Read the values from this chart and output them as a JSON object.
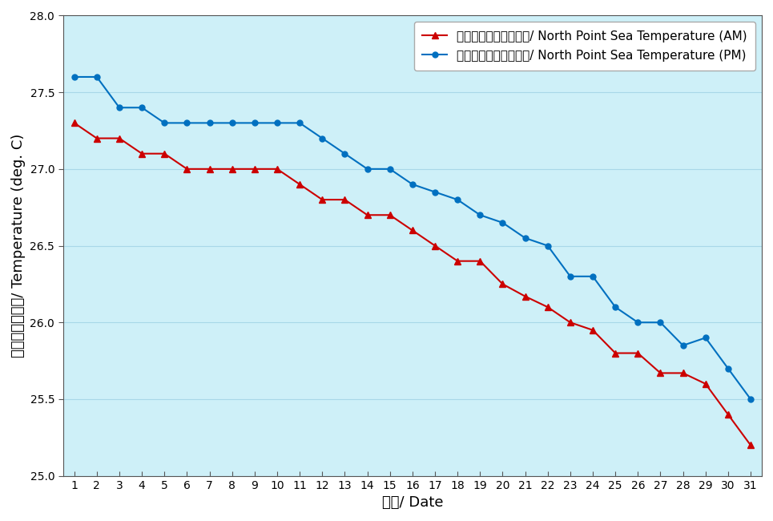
{
  "days": [
    1,
    2,
    3,
    4,
    5,
    6,
    7,
    8,
    9,
    10,
    11,
    12,
    13,
    14,
    15,
    16,
    17,
    18,
    19,
    20,
    21,
    22,
    23,
    24,
    25,
    26,
    27,
    28,
    29,
    30,
    31
  ],
  "am_values": [
    27.3,
    27.2,
    27.2,
    27.1,
    27.1,
    27.0,
    27.0,
    27.0,
    27.0,
    27.0,
    26.9,
    26.8,
    26.8,
    26.7,
    26.7,
    26.6,
    26.5,
    26.4,
    26.4,
    26.25,
    26.17,
    26.1,
    26.0,
    25.95,
    25.8,
    25.8,
    25.67,
    25.67,
    25.6,
    25.4,
    25.2
  ],
  "pm_values": [
    27.6,
    27.6,
    27.4,
    27.4,
    27.3,
    27.3,
    27.3,
    27.3,
    27.3,
    27.3,
    27.3,
    27.2,
    27.1,
    27.0,
    27.0,
    26.9,
    26.85,
    26.8,
    26.7,
    26.65,
    26.55,
    26.5,
    26.3,
    26.3,
    26.1,
    26.0,
    26.0,
    25.85,
    25.9,
    25.7,
    25.5
  ],
  "am_label": "北角海水溫度（上午）/ North Point Sea Temperature (AM)",
  "pm_label": "北角海水溫度（下午）/ North Point Sea Temperature (PM)",
  "xlabel": "日期/ Date",
  "ylabel": "溫度（攝氏度）/ Temperature (deg. C)",
  "ylim": [
    25.0,
    28.0
  ],
  "xlim": [
    0.5,
    31.5
  ],
  "yticks": [
    25.0,
    25.5,
    26.0,
    26.5,
    27.0,
    27.5,
    28.0
  ],
  "background_color": "#cef0f8",
  "fig_background_color": "#ffffff",
  "am_color": "#cc0000",
  "pm_color": "#0070c0",
  "grid_color": "#a8d8e8",
  "spine_color": "#555555",
  "tick_fontsize": 10,
  "axis_label_fontsize": 13,
  "legend_fontsize": 11
}
